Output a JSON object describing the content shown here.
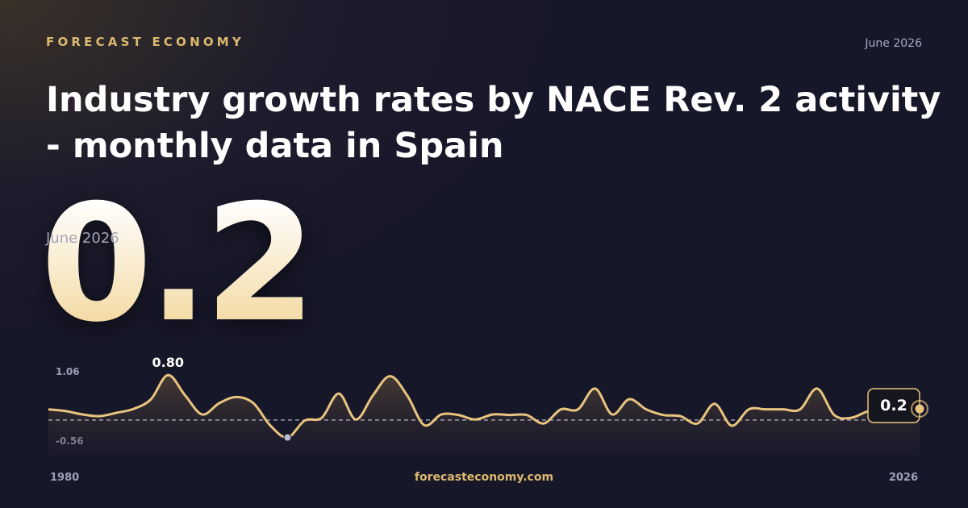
{
  "brand": "FORECAST ECONOMY",
  "date": "June 2026",
  "footer": "forecasteconomy.com",
  "chart_data": {
    "type": "line",
    "title": "Industry growth rates by NACE Rev. 2 activity - monthly data in Spain",
    "values": [
      0.19,
      0.16,
      0.1,
      0.07,
      0.13,
      0.2,
      0.37,
      0.8,
      0.44,
      0.1,
      0.3,
      0.41,
      0.3,
      -0.1,
      -0.31,
      -0.01,
      0.04,
      0.47,
      0.01,
      0.44,
      0.78,
      0.44,
      -0.09,
      0.1,
      0.09,
      0.01,
      0.1,
      0.09,
      0.09,
      -0.06,
      0.19,
      0.19,
      0.56,
      0.1,
      0.37,
      0.19,
      0.09,
      0.07,
      -0.06,
      0.29,
      -0.1,
      0.19,
      0.19,
      0.19,
      0.19,
      0.56,
      0.09,
      0.04,
      0.16,
      0.19,
      0.19,
      0.2
    ],
    "max_label": {
      "value": 0.8,
      "label": "0.80"
    },
    "color": "#e8c47e",
    "reference_line": 0,
    "xlim": [
      1980,
      2026
    ],
    "xticks": [
      1980,
      2026
    ],
    "ylim": [
      -0.56,
      1.06
    ],
    "yticks": [
      -0.56,
      1.06
    ]
  }
}
